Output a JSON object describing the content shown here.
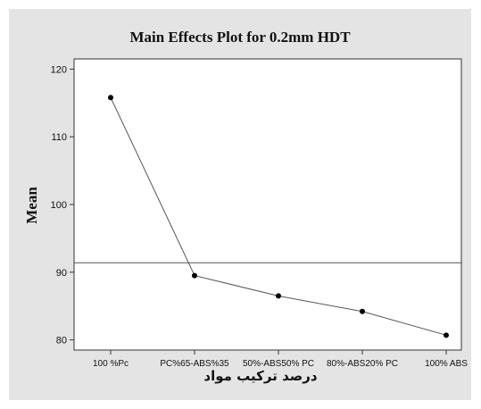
{
  "chart_data": {
    "type": "line",
    "title": "Main Effects Plot for 0.2mm HDT",
    "xlabel": "درصد ترکیب مواد",
    "ylabel": "Mean",
    "categories": [
      "100 %Pc",
      "PC%65-ABS%35",
      "50%-ABS50% PC",
      "80%-ABS20% PC",
      "100% ABS"
    ],
    "values": [
      115.8,
      89.5,
      86.5,
      84.2,
      80.7
    ],
    "reference_line": 91.4,
    "ylim": [
      78.5,
      121.5
    ],
    "yticks": [
      80,
      90,
      100,
      110,
      120
    ],
    "grid": false,
    "legend": "none",
    "colors": {
      "panel": "#e4e4e4",
      "plot_area": "#ffffff",
      "series": "#555555",
      "markers": "#000000",
      "reference_line": "#555555"
    }
  }
}
